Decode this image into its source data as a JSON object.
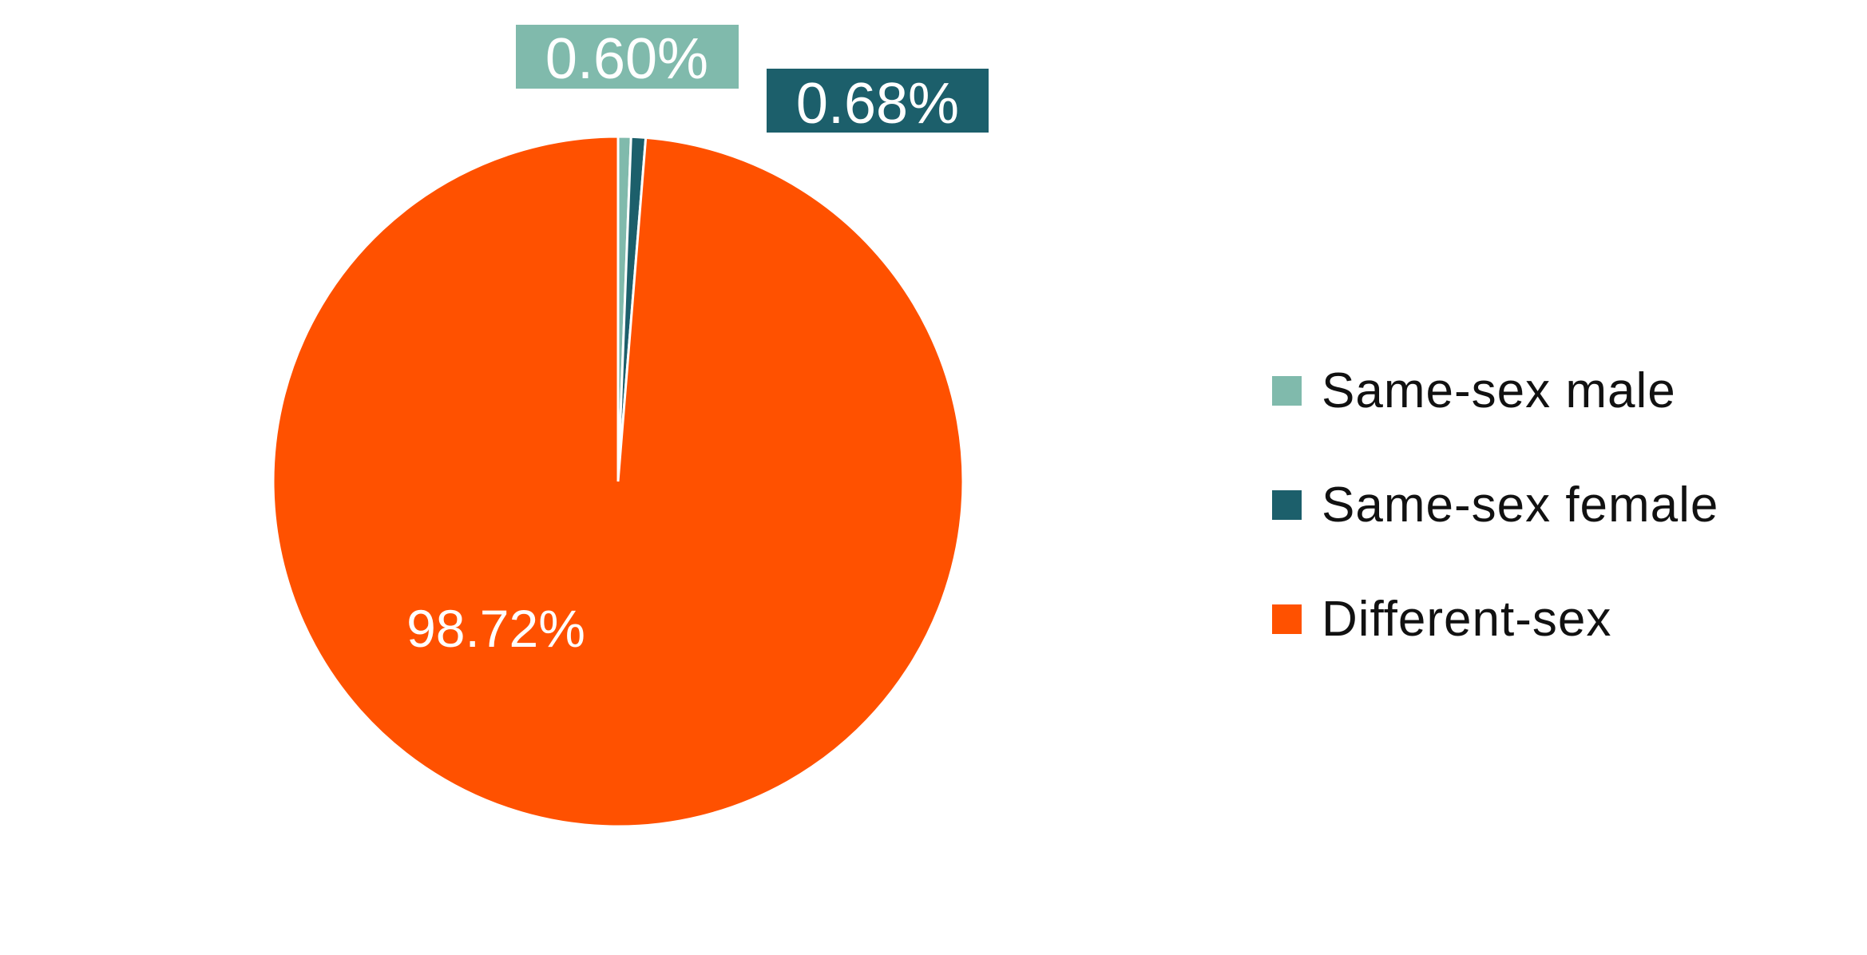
{
  "chart_data": {
    "type": "pie",
    "title": "",
    "start_angle": "12 o'clock",
    "direction": "clockwise",
    "legend_position": "right",
    "slices": [
      {
        "name": "Same-sex male",
        "value": 0.6,
        "label": "0.60%",
        "color": "#80BAAC"
      },
      {
        "name": "Same-sex female",
        "value": 0.68,
        "label": "0.68%",
        "color": "#1C5F6B"
      },
      {
        "name": "Different-sex",
        "value": 98.72,
        "label": "98.72%",
        "color": "#FF5100"
      }
    ]
  }
}
